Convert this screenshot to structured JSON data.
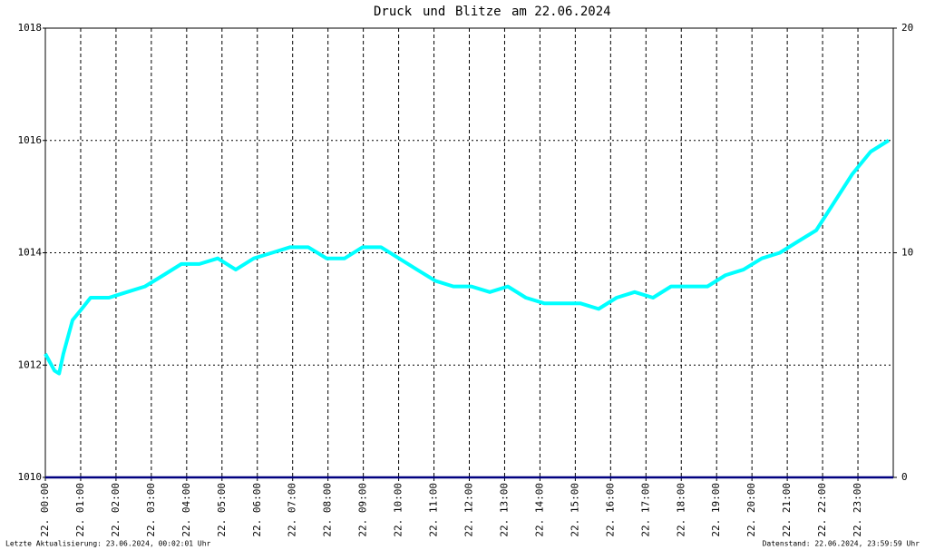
{
  "chart_data": {
    "type": "line",
    "title_connector": "und",
    "title_suffix": "am 22.06.2024",
    "footer_left": "Letzte Aktualisierung: 23.06.2024, 00:02:01 Uhr",
    "footer_right": "Datenstand: 22.06.2024, 23:59:59 Uhr",
    "xlim": [
      0,
      24
    ],
    "ylim": [
      1010,
      1018
    ],
    "y2lim": [
      0,
      20
    ],
    "yticks": [
      1010,
      1012,
      1014,
      1016,
      1018
    ],
    "y2ticks": [
      0,
      10,
      20
    ],
    "xticks": [
      {
        "value": 0,
        "label": "22. 00:00"
      },
      {
        "value": 1,
        "label": "22. 01:00"
      },
      {
        "value": 2,
        "label": "22. 02:00"
      },
      {
        "value": 3,
        "label": "22. 03:00"
      },
      {
        "value": 4,
        "label": "22. 04:00"
      },
      {
        "value": 5,
        "label": "22. 05:00"
      },
      {
        "value": 6,
        "label": "22. 06:00"
      },
      {
        "value": 7,
        "label": "22. 07:00"
      },
      {
        "value": 8,
        "label": "22. 08:00"
      },
      {
        "value": 9,
        "label": "22. 09:00"
      },
      {
        "value": 10,
        "label": "22. 10:00"
      },
      {
        "value": 11,
        "label": "22. 11:00"
      },
      {
        "value": 12,
        "label": "22. 12:00"
      },
      {
        "value": 13,
        "label": "22. 13:00"
      },
      {
        "value": 14,
        "label": "22. 14:00"
      },
      {
        "value": 15,
        "label": "22. 15:00"
      },
      {
        "value": 16,
        "label": "22. 16:00"
      },
      {
        "value": 17,
        "label": "22. 17:00"
      },
      {
        "value": 18,
        "label": "22. 18:00"
      },
      {
        "value": 19,
        "label": "22. 19:00"
      },
      {
        "value": 20,
        "label": "22. 20:00"
      },
      {
        "value": 21,
        "label": "22. 21:00"
      },
      {
        "value": 22,
        "label": "22. 22:00"
      },
      {
        "value": 23,
        "label": "22. 23:00"
      }
    ],
    "grid": true,
    "series": [
      {
        "name": "Druck",
        "color": "#00ffff",
        "x": [
          0,
          0.26,
          0.39,
          0.51,
          0.77,
          1.03,
          1.28,
          1.8,
          2.31,
          2.82,
          3.34,
          3.85,
          4.36,
          4.88,
          5.39,
          5.9,
          6.42,
          6.93,
          7.44,
          7.96,
          8.47,
          8.98,
          9.5,
          10.01,
          10.52,
          11.04,
          11.55,
          12.06,
          12.58,
          13.09,
          13.6,
          14.12,
          14.63,
          15.14,
          15.66,
          16.17,
          16.68,
          17.2,
          17.71,
          18.22,
          18.74,
          19.25,
          19.76,
          20.28,
          20.79,
          21.3,
          21.82,
          22.33,
          22.84,
          23.36,
          23.87
        ],
        "values": [
          1012.2,
          1011.9,
          1011.85,
          1012.2,
          1012.8,
          1013.0,
          1013.2,
          1013.2,
          1013.3,
          1013.4,
          1013.6,
          1013.8,
          1013.8,
          1013.9,
          1013.7,
          1013.9,
          1014.0,
          1014.1,
          1014.1,
          1013.9,
          1013.9,
          1014.1,
          1014.1,
          1013.9,
          1013.7,
          1013.5,
          1013.4,
          1013.4,
          1013.3,
          1013.4,
          1013.2,
          1013.1,
          1013.1,
          1013.1,
          1013.0,
          1013.2,
          1013.3,
          1013.2,
          1013.4,
          1013.4,
          1013.4,
          1013.6,
          1013.7,
          1013.9,
          1014.0,
          1014.2,
          1014.4,
          1014.9,
          1015.4,
          1015.8,
          1016.0
        ]
      },
      {
        "name": "Blitze",
        "color": "#6a5acd",
        "line_color": "#000080",
        "axis": "y2",
        "x": [
          0,
          24
        ],
        "values": [
          0,
          0
        ]
      }
    ]
  }
}
